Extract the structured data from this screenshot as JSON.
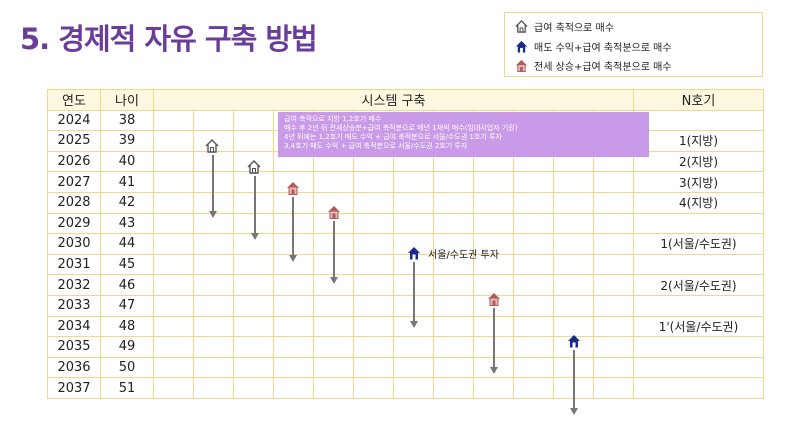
{
  "page_title": "5. 경제적 자유 구축 방법",
  "legend": [
    {
      "icon": "house-outline-icon",
      "label": "급여 축적으로 매수"
    },
    {
      "icon": "house-navy-icon",
      "label": "매도 수익+급여 축적분으로 매수"
    },
    {
      "icon": "house-pink-icon",
      "label": "전세 상승+급여 축적분으로 매수"
    }
  ],
  "table": {
    "headers": {
      "year": "연도",
      "age": "나이",
      "system": "시스템 구축",
      "nth": "N호기"
    },
    "rows": [
      {
        "year": "2024",
        "age": "38",
        "nth": ""
      },
      {
        "year": "2025",
        "age": "39",
        "nth": "1(지방)"
      },
      {
        "year": "2026",
        "age": "40",
        "nth": "2(지방)"
      },
      {
        "year": "2027",
        "age": "41",
        "nth": "3(지방)"
      },
      {
        "year": "2028",
        "age": "42",
        "nth": "4(지방)"
      },
      {
        "year": "2029",
        "age": "43",
        "nth": ""
      },
      {
        "year": "2030",
        "age": "44",
        "nth": "1(서울/수도권)"
      },
      {
        "year": "2031",
        "age": "45",
        "nth": ""
      },
      {
        "year": "2032",
        "age": "46",
        "nth": "2(서울/수도권)"
      },
      {
        "year": "2033",
        "age": "47",
        "nth": ""
      },
      {
        "year": "2034",
        "age": "48",
        "nth": "1'(서울/수도권)"
      },
      {
        "year": "2035",
        "age": "49",
        "nth": ""
      },
      {
        "year": "2036",
        "age": "50",
        "nth": ""
      },
      {
        "year": "2037",
        "age": "51",
        "nth": ""
      }
    ]
  },
  "note_lines": [
    "급여 축적으로 지방 1,2호기 매수",
    "매수 후 2년 뒤 전세상승분+급여 축적분으로 매년 1채씩 매수(임대사업자 기원)",
    "4년 뒤에는 1,2호기 매도 수익 + 급여 축적분으로 서울/수도권 1호기 투자",
    "3,4호기 매도  수익 + 급여 축적분으로 서울/수도권 2호기 투자"
  ],
  "timeline_tag": "서울/수도권 투자",
  "colors": {
    "title": "#6a3d9a",
    "border": "#f0d78a",
    "note_bg": "#c89ae8",
    "house_outline": "#555555",
    "house_navy": "#1a2a8c",
    "house_pink": "#b05a5a",
    "arrow": "#777777"
  }
}
